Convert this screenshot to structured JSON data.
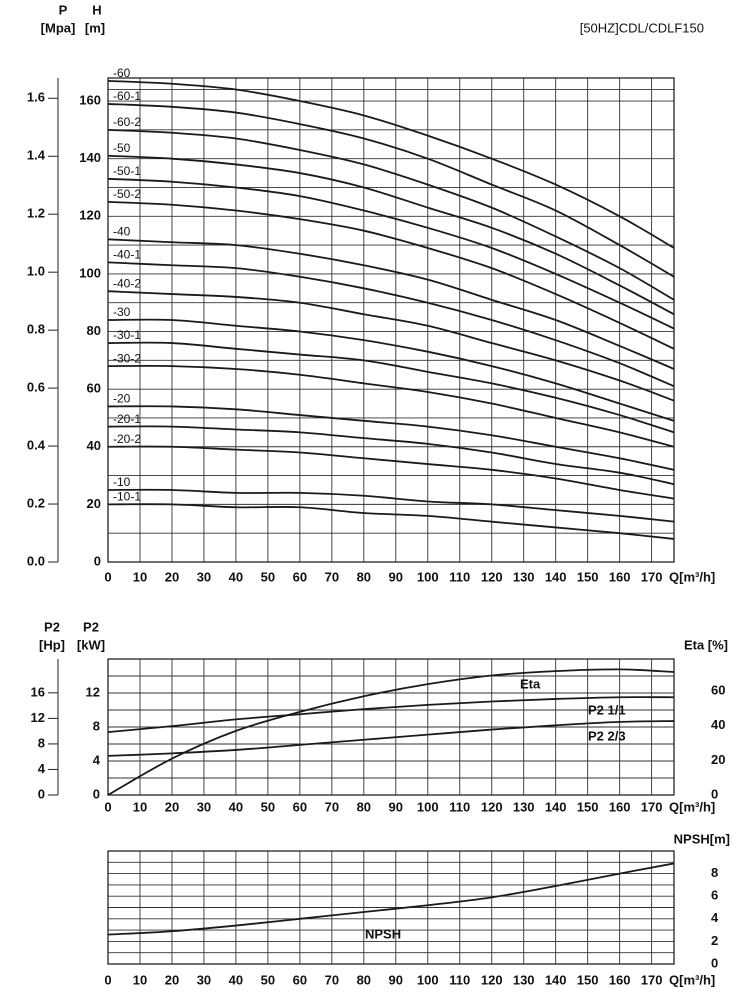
{
  "chart_data": [
    {
      "type": "line",
      "title": "[50HZ]CDL/CDLF150",
      "y_label": "H",
      "y_unit": "[m]",
      "y2_label": "P",
      "y2_unit": "[Mpa]",
      "x_label": "Q[m³/h]",
      "color": "#1a1a1a",
      "grid": true,
      "x": [
        0,
        20,
        40,
        60,
        80,
        100,
        120,
        140,
        160,
        177
      ],
      "xlim": [
        0,
        177
      ],
      "xticks": [
        0,
        10,
        20,
        30,
        40,
        50,
        60,
        70,
        80,
        90,
        100,
        110,
        120,
        130,
        140,
        150,
        160,
        170
      ],
      "ylim": [
        0,
        168
      ],
      "yticks": [
        0,
        20,
        40,
        60,
        80,
        100,
        120,
        140,
        160
      ],
      "y2lim": [
        0,
        1.67
      ],
      "y2ticks": [
        {
          "value": 0,
          "label": "0.0"
        },
        0.2,
        0.4,
        0.6,
        0.8,
        {
          "value": 1,
          "label": "1.0"
        },
        1.2,
        1.4,
        1.6
      ],
      "series": [
        {
          "name": "-60",
          "values": [
            167,
            166,
            164,
            160,
            155,
            148,
            140,
            131,
            120,
            109
          ]
        },
        {
          "name": "-60-1",
          "values": [
            159,
            158,
            156,
            152,
            147,
            140,
            131,
            122,
            110,
            99
          ]
        },
        {
          "name": "-60-2",
          "values": [
            150,
            149,
            147,
            143,
            138,
            131,
            123,
            113,
            102,
            91
          ]
        },
        {
          "name": "-50",
          "values": [
            141,
            140,
            138,
            135,
            130,
            123,
            116,
            107,
            96,
            86
          ]
        },
        {
          "name": "-50-1",
          "values": [
            133,
            132,
            130,
            127,
            122,
            116,
            109,
            100,
            90,
            81
          ]
        },
        {
          "name": "-50-2",
          "values": [
            125,
            124,
            122,
            119,
            115,
            109,
            102,
            93,
            83,
            74
          ]
        },
        {
          "name": "-40",
          "values": [
            112,
            111,
            110,
            107,
            103,
            98,
            91,
            84,
            75,
            67
          ]
        },
        {
          "name": "-40-1",
          "values": [
            104,
            103,
            102,
            99,
            95,
            90,
            84,
            77,
            69,
            61
          ]
        },
        {
          "name": "-40-2",
          "values": [
            94,
            93,
            92,
            90,
            86,
            82,
            76,
            70,
            63,
            56
          ]
        },
        {
          "name": "-30",
          "values": [
            84,
            84,
            82,
            80,
            77,
            73,
            68,
            62,
            55,
            49
          ]
        },
        {
          "name": "-30-1",
          "values": [
            76,
            76,
            74,
            72,
            70,
            66,
            62,
            57,
            51,
            45
          ]
        },
        {
          "name": "-30-2",
          "values": [
            68,
            68,
            67,
            65,
            62,
            59,
            55,
            50,
            45,
            40
          ]
        },
        {
          "name": "-20",
          "values": [
            54,
            54,
            53,
            51,
            49,
            47,
            44,
            40,
            36,
            32
          ]
        },
        {
          "name": "-20-1",
          "values": [
            47,
            47,
            46,
            45,
            43,
            41,
            38,
            34,
            31,
            27
          ]
        },
        {
          "name": "-20-2",
          "values": [
            40,
            40,
            39,
            38,
            36,
            34,
            32,
            29,
            25,
            22
          ]
        },
        {
          "name": "-10",
          "values": [
            25,
            25,
            24,
            24,
            23,
            21,
            20,
            18,
            16,
            14
          ]
        },
        {
          "name": "-10-1",
          "values": [
            20,
            20,
            19,
            19,
            17,
            16,
            14,
            12,
            10,
            8
          ]
        }
      ]
    },
    {
      "type": "line",
      "y_label": "P2",
      "y_unit": "[kW]",
      "y2_label": "Eta [%]",
      "y3_label": "P2",
      "y3_unit": "[Hp]",
      "x_label": "Q[m³/h]",
      "color": "#1a1a1a",
      "grid": true,
      "x": [
        0,
        20,
        40,
        60,
        80,
        100,
        120,
        140,
        160,
        177
      ],
      "xlim": [
        0,
        177
      ],
      "xticks": [
        0,
        10,
        20,
        30,
        40,
        50,
        60,
        70,
        80,
        90,
        100,
        110,
        120,
        130,
        140,
        150,
        160,
        170
      ],
      "ylim": [
        0,
        16
      ],
      "yticks": [
        0,
        4,
        8,
        12
      ],
      "y2lim": [
        0,
        78.5
      ],
      "y2ticks": [
        0,
        20,
        40,
        60
      ],
      "y3lim": [
        0,
        21.3
      ],
      "y3ticks": [
        0,
        4,
        8,
        12,
        16
      ],
      "series": [
        {
          "name": "Eta",
          "axis": "y2",
          "values": [
            0,
            21,
            37,
            48,
            57,
            64,
            69,
            71.5,
            72.5,
            71
          ]
        },
        {
          "name": "P2 1/1",
          "values": [
            7.4,
            8.1,
            8.9,
            9.5,
            10.1,
            10.6,
            11,
            11.3,
            11.5,
            11.5
          ]
        },
        {
          "name": "P2 2/3",
          "values": [
            4.6,
            4.9,
            5.3,
            5.9,
            6.5,
            7.1,
            7.7,
            8.2,
            8.6,
            8.7
          ]
        }
      ]
    },
    {
      "type": "line",
      "y_label": "NPSH[m]",
      "x_label": "Q[m³/h]",
      "color": "#1a1a1a",
      "grid": true,
      "x": [
        0,
        20,
        40,
        60,
        80,
        100,
        120,
        140,
        160,
        177
      ],
      "xlim": [
        0,
        177
      ],
      "xticks": [
        0,
        10,
        20,
        30,
        40,
        50,
        60,
        70,
        80,
        90,
        100,
        110,
        120,
        130,
        140,
        150,
        160,
        170
      ],
      "ylim": [
        0,
        10
      ],
      "yticks": [
        0,
        2,
        4,
        6,
        8
      ],
      "series": [
        {
          "name": "NPSH",
          "values": [
            2.6,
            2.9,
            3.4,
            4.0,
            4.6,
            5.2,
            5.9,
            6.9,
            8.0,
            8.9
          ]
        }
      ]
    }
  ]
}
